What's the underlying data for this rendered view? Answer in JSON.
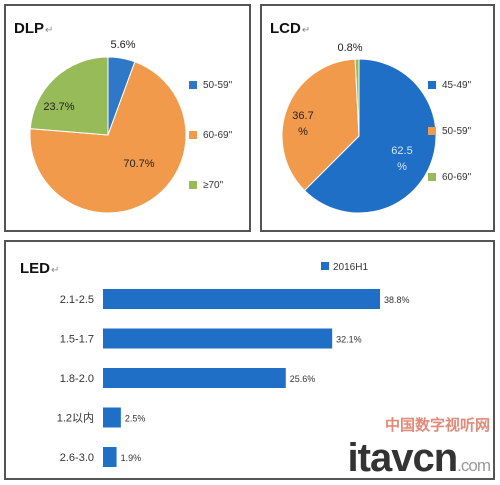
{
  "chart_data": [
    {
      "type": "pie",
      "title": "DLP",
      "slices": [
        {
          "label": "50-59\"",
          "value": 5.6,
          "value_label": "5.6%",
          "color": "#2e78c7"
        },
        {
          "label": "60-69\"",
          "value": 70.7,
          "value_label": "70.7%",
          "color": "#f29a4c"
        },
        {
          "label": "≥70\"",
          "value": 23.7,
          "value_label": "23.7%",
          "color": "#98bb5a"
        }
      ],
      "legend_position": "right"
    },
    {
      "type": "pie",
      "title": "LCD",
      "slices": [
        {
          "label": "45-49\"",
          "value": 62.5,
          "value_label": "62.5%",
          "color": "#1f6fc7"
        },
        {
          "label": "50-59\"",
          "value": 36.7,
          "value_label": "36.7%",
          "color": "#f29a4c"
        },
        {
          "label": "60-69\"",
          "value": 0.8,
          "value_label": "0.8%",
          "color": "#98bb5a"
        }
      ],
      "legend_position": "right"
    },
    {
      "type": "bar",
      "orientation": "horizontal",
      "title": "LED",
      "categories": [
        "2.1-2.5",
        "1.5-1.7",
        "1.8-2.0",
        "1.2以内",
        "2.6-3.0"
      ],
      "series": [
        {
          "name": "2016H1",
          "values": [
            38.8,
            32.1,
            25.6,
            2.5,
            1.9
          ],
          "color": "#1f6fc7"
        }
      ],
      "value_labels": [
        "38.8%",
        "32.1%",
        "25.6%",
        "2.5%",
        "1.9%"
      ],
      "legend_position": "top"
    }
  ],
  "panels": {
    "dlp_title": "DLP",
    "lcd_title": "LCD",
    "led_title": "LED",
    "title_mark": "↵"
  },
  "watermark": {
    "cn": "中国数字视听网",
    "en": "itavcn",
    "dotcom": ".com"
  }
}
